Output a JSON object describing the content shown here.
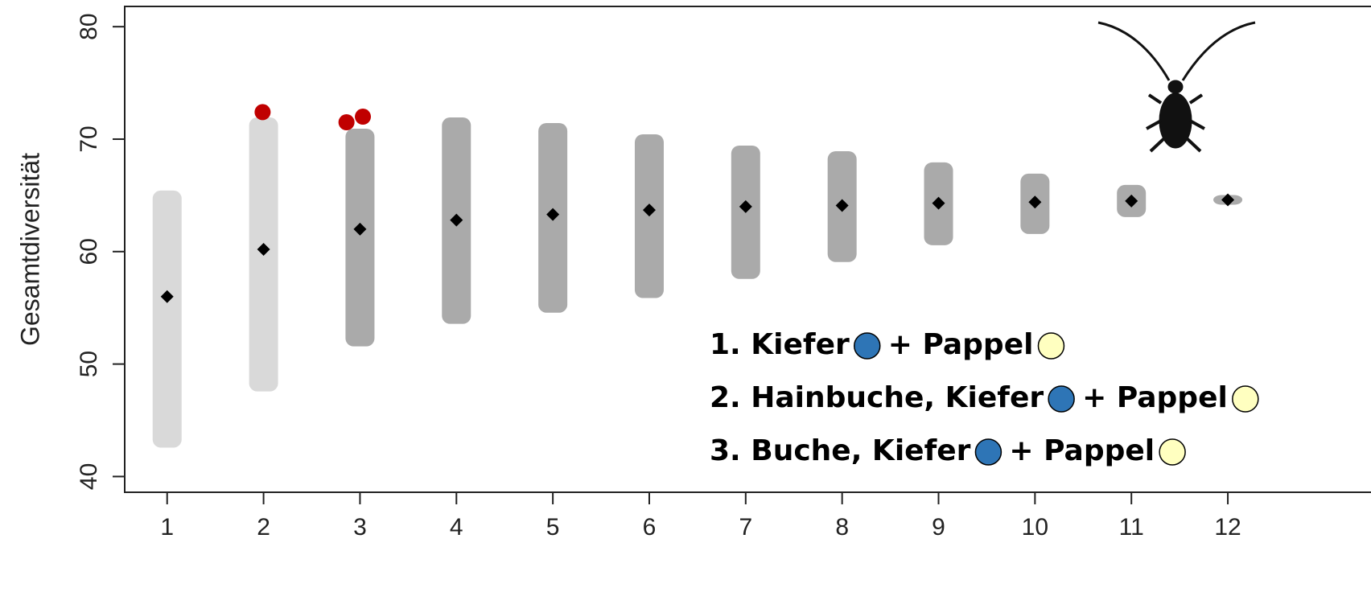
{
  "chart_data": {
    "type": "strip",
    "ylabel": "Gesamtdiversität",
    "categories": [
      1,
      2,
      3,
      4,
      5,
      6,
      7,
      8,
      9,
      10,
      11,
      12
    ],
    "xlim": [
      0.56,
      12.35
    ],
    "xticks": [
      1,
      2,
      3,
      4,
      5,
      6,
      7,
      8,
      9,
      10,
      11,
      12
    ],
    "ylim": [
      38.6,
      81.8
    ],
    "yticks": [
      40,
      50,
      60,
      70,
      80
    ],
    "means": [
      56,
      60.2,
      62,
      62.8,
      63.3,
      63.7,
      64,
      64.1,
      64.3,
      64.4,
      64.5,
      64.6
    ],
    "mins": [
      43,
      48,
      52,
      54,
      55,
      56.3,
      58,
      59.5,
      61,
      62,
      63.5,
      64.6
    ],
    "maxs": [
      65,
      71.5,
      70.5,
      71.5,
      71,
      70,
      69,
      68.5,
      67.5,
      66.5,
      65.5,
      64.6
    ],
    "range_color": "#aaaaaa",
    "mean_color": "#000000",
    "highlight": {
      "x": [
        1.99,
        2.86,
        3.03
      ],
      "y": [
        72.4,
        71.5,
        72
      ],
      "color": "#c00000"
    },
    "legend": {
      "lines": [
        [
          "1. Kiefer",
          "+ Pappel"
        ],
        [
          "2. Hainbuche, Kiefer",
          "+ Pappel"
        ],
        [
          "3. Buche, Kiefer",
          "+ Pappel"
        ]
      ],
      "colors": [
        "#2e75b6",
        "#ffffc0"
      ]
    }
  }
}
